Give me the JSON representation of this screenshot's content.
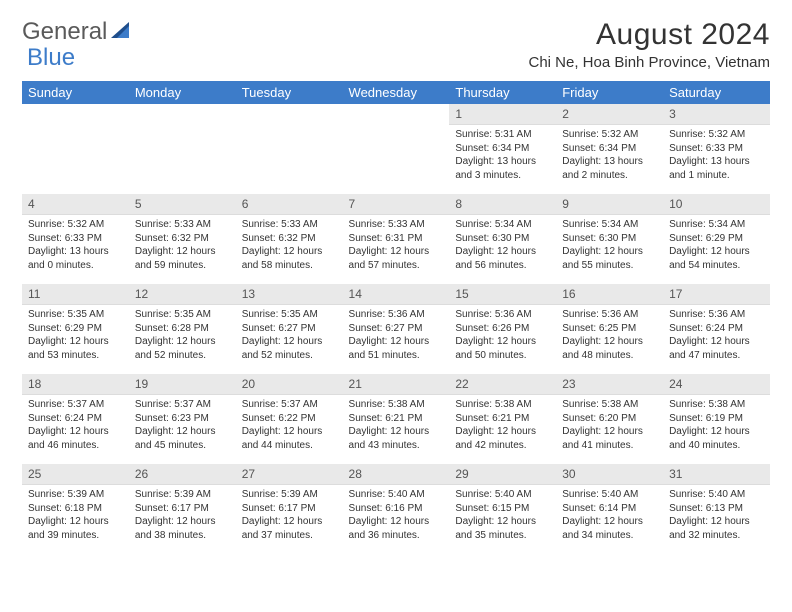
{
  "logo": {
    "text_a": "General",
    "text_b": "Blue"
  },
  "title": "August 2024",
  "location": "Chi Ne, Hoa Binh Province, Vietnam",
  "colors": {
    "header_bg": "#3d7cc9",
    "header_text": "#ffffff",
    "daynum_bg": "#e9e9e9",
    "daynum_text": "#555555",
    "body_text": "#333333",
    "page_bg": "#ffffff"
  },
  "typography": {
    "title_fontsize": 30,
    "location_fontsize": 15,
    "day_header_fontsize": 13,
    "daynum_fontsize": 12,
    "cell_fontsize": 10
  },
  "days": [
    "Sunday",
    "Monday",
    "Tuesday",
    "Wednesday",
    "Thursday",
    "Friday",
    "Saturday"
  ],
  "weeks": [
    [
      null,
      null,
      null,
      null,
      {
        "n": "1",
        "sr": "5:31 AM",
        "ss": "6:34 PM",
        "dl": "13 hours and 3 minutes."
      },
      {
        "n": "2",
        "sr": "5:32 AM",
        "ss": "6:34 PM",
        "dl": "13 hours and 2 minutes."
      },
      {
        "n": "3",
        "sr": "5:32 AM",
        "ss": "6:33 PM",
        "dl": "13 hours and 1 minute."
      }
    ],
    [
      {
        "n": "4",
        "sr": "5:32 AM",
        "ss": "6:33 PM",
        "dl": "13 hours and 0 minutes."
      },
      {
        "n": "5",
        "sr": "5:33 AM",
        "ss": "6:32 PM",
        "dl": "12 hours and 59 minutes."
      },
      {
        "n": "6",
        "sr": "5:33 AM",
        "ss": "6:32 PM",
        "dl": "12 hours and 58 minutes."
      },
      {
        "n": "7",
        "sr": "5:33 AM",
        "ss": "6:31 PM",
        "dl": "12 hours and 57 minutes."
      },
      {
        "n": "8",
        "sr": "5:34 AM",
        "ss": "6:30 PM",
        "dl": "12 hours and 56 minutes."
      },
      {
        "n": "9",
        "sr": "5:34 AM",
        "ss": "6:30 PM",
        "dl": "12 hours and 55 minutes."
      },
      {
        "n": "10",
        "sr": "5:34 AM",
        "ss": "6:29 PM",
        "dl": "12 hours and 54 minutes."
      }
    ],
    [
      {
        "n": "11",
        "sr": "5:35 AM",
        "ss": "6:29 PM",
        "dl": "12 hours and 53 minutes."
      },
      {
        "n": "12",
        "sr": "5:35 AM",
        "ss": "6:28 PM",
        "dl": "12 hours and 52 minutes."
      },
      {
        "n": "13",
        "sr": "5:35 AM",
        "ss": "6:27 PM",
        "dl": "12 hours and 52 minutes."
      },
      {
        "n": "14",
        "sr": "5:36 AM",
        "ss": "6:27 PM",
        "dl": "12 hours and 51 minutes."
      },
      {
        "n": "15",
        "sr": "5:36 AM",
        "ss": "6:26 PM",
        "dl": "12 hours and 50 minutes."
      },
      {
        "n": "16",
        "sr": "5:36 AM",
        "ss": "6:25 PM",
        "dl": "12 hours and 48 minutes."
      },
      {
        "n": "17",
        "sr": "5:36 AM",
        "ss": "6:24 PM",
        "dl": "12 hours and 47 minutes."
      }
    ],
    [
      {
        "n": "18",
        "sr": "5:37 AM",
        "ss": "6:24 PM",
        "dl": "12 hours and 46 minutes."
      },
      {
        "n": "19",
        "sr": "5:37 AM",
        "ss": "6:23 PM",
        "dl": "12 hours and 45 minutes."
      },
      {
        "n": "20",
        "sr": "5:37 AM",
        "ss": "6:22 PM",
        "dl": "12 hours and 44 minutes."
      },
      {
        "n": "21",
        "sr": "5:38 AM",
        "ss": "6:21 PM",
        "dl": "12 hours and 43 minutes."
      },
      {
        "n": "22",
        "sr": "5:38 AM",
        "ss": "6:21 PM",
        "dl": "12 hours and 42 minutes."
      },
      {
        "n": "23",
        "sr": "5:38 AM",
        "ss": "6:20 PM",
        "dl": "12 hours and 41 minutes."
      },
      {
        "n": "24",
        "sr": "5:38 AM",
        "ss": "6:19 PM",
        "dl": "12 hours and 40 minutes."
      }
    ],
    [
      {
        "n": "25",
        "sr": "5:39 AM",
        "ss": "6:18 PM",
        "dl": "12 hours and 39 minutes."
      },
      {
        "n": "26",
        "sr": "5:39 AM",
        "ss": "6:17 PM",
        "dl": "12 hours and 38 minutes."
      },
      {
        "n": "27",
        "sr": "5:39 AM",
        "ss": "6:17 PM",
        "dl": "12 hours and 37 minutes."
      },
      {
        "n": "28",
        "sr": "5:40 AM",
        "ss": "6:16 PM",
        "dl": "12 hours and 36 minutes."
      },
      {
        "n": "29",
        "sr": "5:40 AM",
        "ss": "6:15 PM",
        "dl": "12 hours and 35 minutes."
      },
      {
        "n": "30",
        "sr": "5:40 AM",
        "ss": "6:14 PM",
        "dl": "12 hours and 34 minutes."
      },
      {
        "n": "31",
        "sr": "5:40 AM",
        "ss": "6:13 PM",
        "dl": "12 hours and 32 minutes."
      }
    ]
  ],
  "labels": {
    "sunrise": "Sunrise:",
    "sunset": "Sunset:",
    "daylight": "Daylight:"
  }
}
